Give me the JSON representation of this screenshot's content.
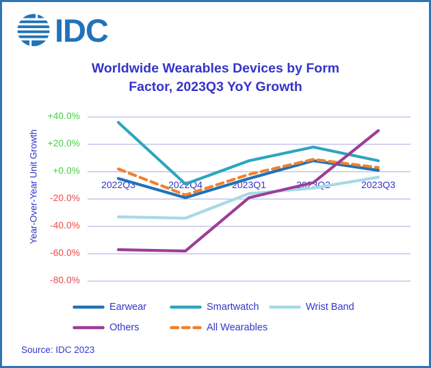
{
  "logo": {
    "text": "IDC",
    "color": "#2173b9"
  },
  "title": {
    "line1": "Worldwide Wearables Devices by Form",
    "line2": "Factor, 2023Q3 YoY Growth",
    "color": "#3434ca"
  },
  "source": {
    "text": "Source: IDC 2023"
  },
  "chart_data": {
    "type": "line",
    "title": "Worldwide Wearables Devices by Form Factor, 2023Q3 YoY Growth",
    "ylabel": "Year-Over-Year Unit Growth",
    "xlabel": "",
    "categories": [
      "2022Q3",
      "2022Q4",
      "2023Q1",
      "2023Q2",
      "2023Q3"
    ],
    "series": [
      {
        "name": "Earwear",
        "values": [
          -5,
          -19,
          -5,
          8,
          1
        ],
        "color": "#2072b8",
        "dashed": false
      },
      {
        "name": "Smartwatch",
        "values": [
          36,
          -9,
          8,
          18,
          8
        ],
        "color": "#2ca5c0",
        "dashed": false
      },
      {
        "name": "Wrist Band",
        "values": [
          -33,
          -34,
          -16,
          -12,
          -4
        ],
        "color": "#a6dae6",
        "dashed": false
      },
      {
        "name": "Others",
        "values": [
          -57,
          -58,
          -19,
          -8,
          30
        ],
        "color": "#9d3e96",
        "dashed": false
      },
      {
        "name": "All Wearables",
        "values": [
          2,
          -17,
          -2,
          9,
          3
        ],
        "color": "#f0812c",
        "dashed": true
      }
    ],
    "ylim": [
      -80,
      40
    ],
    "yticks": [
      {
        "value": 40,
        "label": "+40.0%"
      },
      {
        "value": 20,
        "label": "+20.0%"
      },
      {
        "value": 0,
        "label": "+0.0%"
      },
      {
        "value": -20,
        "label": "-20.0%"
      },
      {
        "value": -40,
        "label": "-40.0%"
      },
      {
        "value": -60,
        "label": "-60.0%"
      },
      {
        "value": -80,
        "label": "-80.0%"
      }
    ],
    "grid": true,
    "legend_position": "bottom",
    "colors": {
      "positive_tick": "#3cd43c",
      "negative_tick": "#ef4545",
      "gridline": "#b6b6ea",
      "axis_text": "#3434ca",
      "frame_border": "#2e74b5"
    }
  }
}
